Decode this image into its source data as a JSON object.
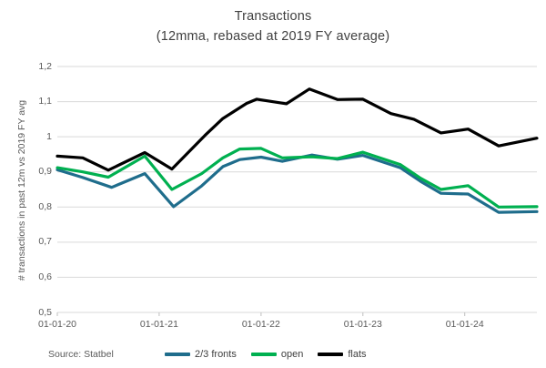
{
  "title": "Transactions",
  "subtitle": "(12mma, rebased at 2019 FY average)",
  "y_axis_title": "# transactions in past 12m  vs 2019 FY avg",
  "source": "Source: Statbel",
  "chart_data": {
    "type": "line",
    "title": "Transactions (12mma, rebased at 2019 FY average)",
    "ylabel": "# transactions in past 12m vs 2019 FY avg",
    "ylim": [
      0.5,
      1.2
    ],
    "x_span_months": 56.5,
    "grid": true,
    "grid_color": "#d9d9d9",
    "tick_color": "#bfbfbf",
    "legend_position": "bottom",
    "y_ticks": [
      {
        "v": 1.2,
        "label": "1,2"
      },
      {
        "v": 1.1,
        "label": "1,1"
      },
      {
        "v": 1.0,
        "label": "1"
      },
      {
        "v": 0.9,
        "label": "0,9"
      },
      {
        "v": 0.8,
        "label": "0,8"
      },
      {
        "v": 0.7,
        "label": "0,7"
      },
      {
        "v": 0.6,
        "label": "0,6"
      },
      {
        "v": 0.5,
        "label": "0,5"
      }
    ],
    "x_ticks": [
      {
        "m": 0,
        "label": "01-01-20"
      },
      {
        "m": 12,
        "label": "01-01-21"
      },
      {
        "m": 24,
        "label": "01-01-22"
      },
      {
        "m": 36,
        "label": "01-01-23"
      },
      {
        "m": 48,
        "label": "01-01-24"
      }
    ],
    "series": [
      {
        "name": "2/3 fronts",
        "color": "#1f6d8c",
        "points": [
          [
            0,
            0.906
          ],
          [
            3,
            0.884
          ],
          [
            6.4,
            0.856
          ],
          [
            10.3,
            0.895
          ],
          [
            13.7,
            0.801
          ],
          [
            17,
            0.86
          ],
          [
            19.5,
            0.915
          ],
          [
            21.5,
            0.935
          ],
          [
            24,
            0.942
          ],
          [
            26.5,
            0.93
          ],
          [
            30,
            0.948
          ],
          [
            33,
            0.936
          ],
          [
            36,
            0.947
          ],
          [
            40.4,
            0.912
          ],
          [
            42.8,
            0.873
          ],
          [
            45.2,
            0.839
          ],
          [
            48.4,
            0.837
          ],
          [
            52,
            0.785
          ],
          [
            56.5,
            0.787
          ]
        ]
      },
      {
        "name": "open",
        "color": "#00b050",
        "points": [
          [
            0,
            0.912
          ],
          [
            3,
            0.9
          ],
          [
            6,
            0.885
          ],
          [
            10.3,
            0.945
          ],
          [
            13.5,
            0.85
          ],
          [
            17,
            0.895
          ],
          [
            19.5,
            0.94
          ],
          [
            21.5,
            0.965
          ],
          [
            24,
            0.967
          ],
          [
            26.5,
            0.94
          ],
          [
            30,
            0.943
          ],
          [
            33,
            0.938
          ],
          [
            36,
            0.956
          ],
          [
            40.4,
            0.921
          ],
          [
            42.8,
            0.882
          ],
          [
            45.2,
            0.85
          ],
          [
            48.4,
            0.861
          ],
          [
            52,
            0.8
          ],
          [
            56.5,
            0.801
          ]
        ]
      },
      {
        "name": "flats",
        "color": "#000000",
        "points": [
          [
            0,
            0.945
          ],
          [
            3,
            0.94
          ],
          [
            6,
            0.905
          ],
          [
            10.3,
            0.955
          ],
          [
            13.5,
            0.908
          ],
          [
            17.4,
            1.004
          ],
          [
            19.5,
            1.052
          ],
          [
            22.3,
            1.095
          ],
          [
            23.5,
            1.107
          ],
          [
            27,
            1.094
          ],
          [
            29.7,
            1.136
          ],
          [
            33,
            1.106
          ],
          [
            36,
            1.107
          ],
          [
            39.3,
            1.066
          ],
          [
            42,
            1.05
          ],
          [
            45.2,
            1.011
          ],
          [
            48.4,
            1.022
          ],
          [
            52,
            0.974
          ],
          [
            56.5,
            0.996
          ]
        ]
      }
    ]
  }
}
